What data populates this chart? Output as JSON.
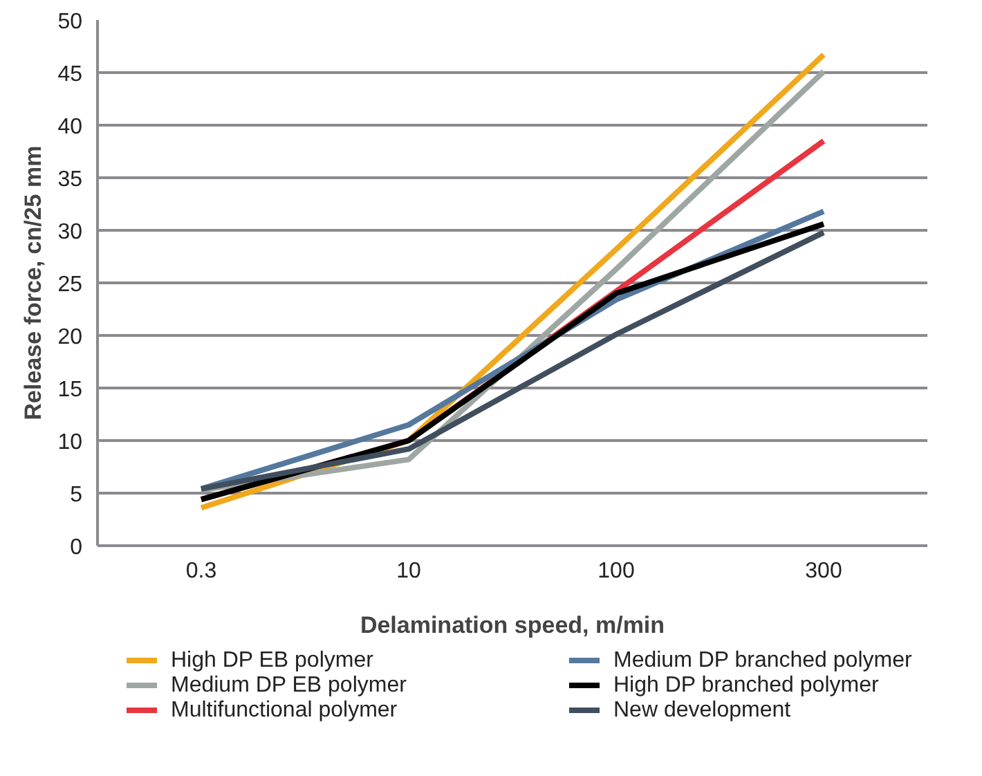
{
  "chart_data": {
    "type": "line",
    "xlabel": "Delamination speed, m/min",
    "ylabel": "Release force, cn/25 mm",
    "categories": [
      "0.3",
      "10",
      "100",
      "300"
    ],
    "series": [
      {
        "name": "High DP EB polymer",
        "color": "#f0a81c",
        "values": [
          3.6,
          10,
          28.2,
          46.7
        ]
      },
      {
        "name": "Medium DP EB polymer",
        "color": "#9ea7a3",
        "values": [
          5.3,
          8.2,
          26.3,
          45.1
        ]
      },
      {
        "name": "Multifunctional polymer",
        "color": "#e8353f",
        "values": [
          4.4,
          10,
          24.2,
          38.5
        ]
      },
      {
        "name": "Medium DP branched polymer",
        "color": "#55789e",
        "values": [
          5.4,
          11.5,
          23.4,
          31.8
        ]
      },
      {
        "name": "High DP branched polymer",
        "color": "#000000",
        "values": [
          4.4,
          10,
          24,
          30.6
        ]
      },
      {
        "name": "New development",
        "color": "#404e5e",
        "values": [
          5.4,
          9.2,
          20.1,
          29.8
        ]
      }
    ],
    "ylim": [
      0,
      50
    ],
    "yticks": [
      0,
      5,
      10,
      15,
      20,
      25,
      30,
      35,
      40,
      45,
      50
    ],
    "grid": "y",
    "legend": "bottom",
    "marker": "none",
    "line_style": "solid"
  }
}
